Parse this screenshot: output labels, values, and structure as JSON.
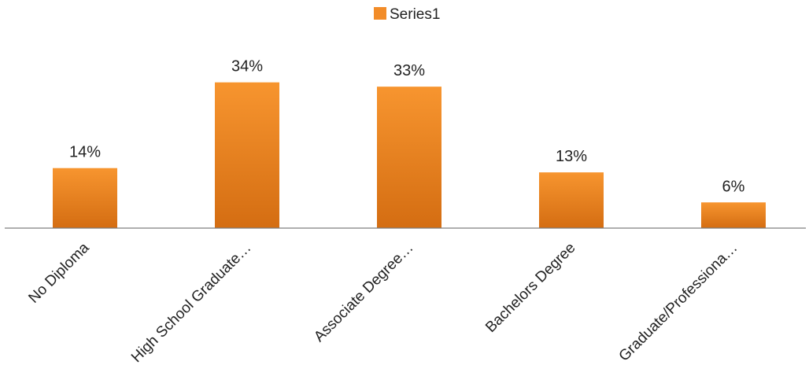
{
  "chart_data": {
    "type": "bar",
    "categories": [
      "No Diploma",
      "High School Graduate…",
      "Associate Degree…",
      "Bachelors Degree",
      "Graduate/Professiona…"
    ],
    "series": [
      {
        "name": "Series1",
        "values": [
          14,
          34,
          33,
          13,
          6
        ],
        "labels": [
          "14%",
          "34%",
          "33%",
          "13%",
          "6%"
        ]
      }
    ],
    "ylim": [
      0,
      40
    ],
    "grid": false,
    "legend": "top-center",
    "colors": {
      "bar": "#f28c28",
      "bar_dark": "#d46d12",
      "axis": "#7f7f7f"
    }
  }
}
